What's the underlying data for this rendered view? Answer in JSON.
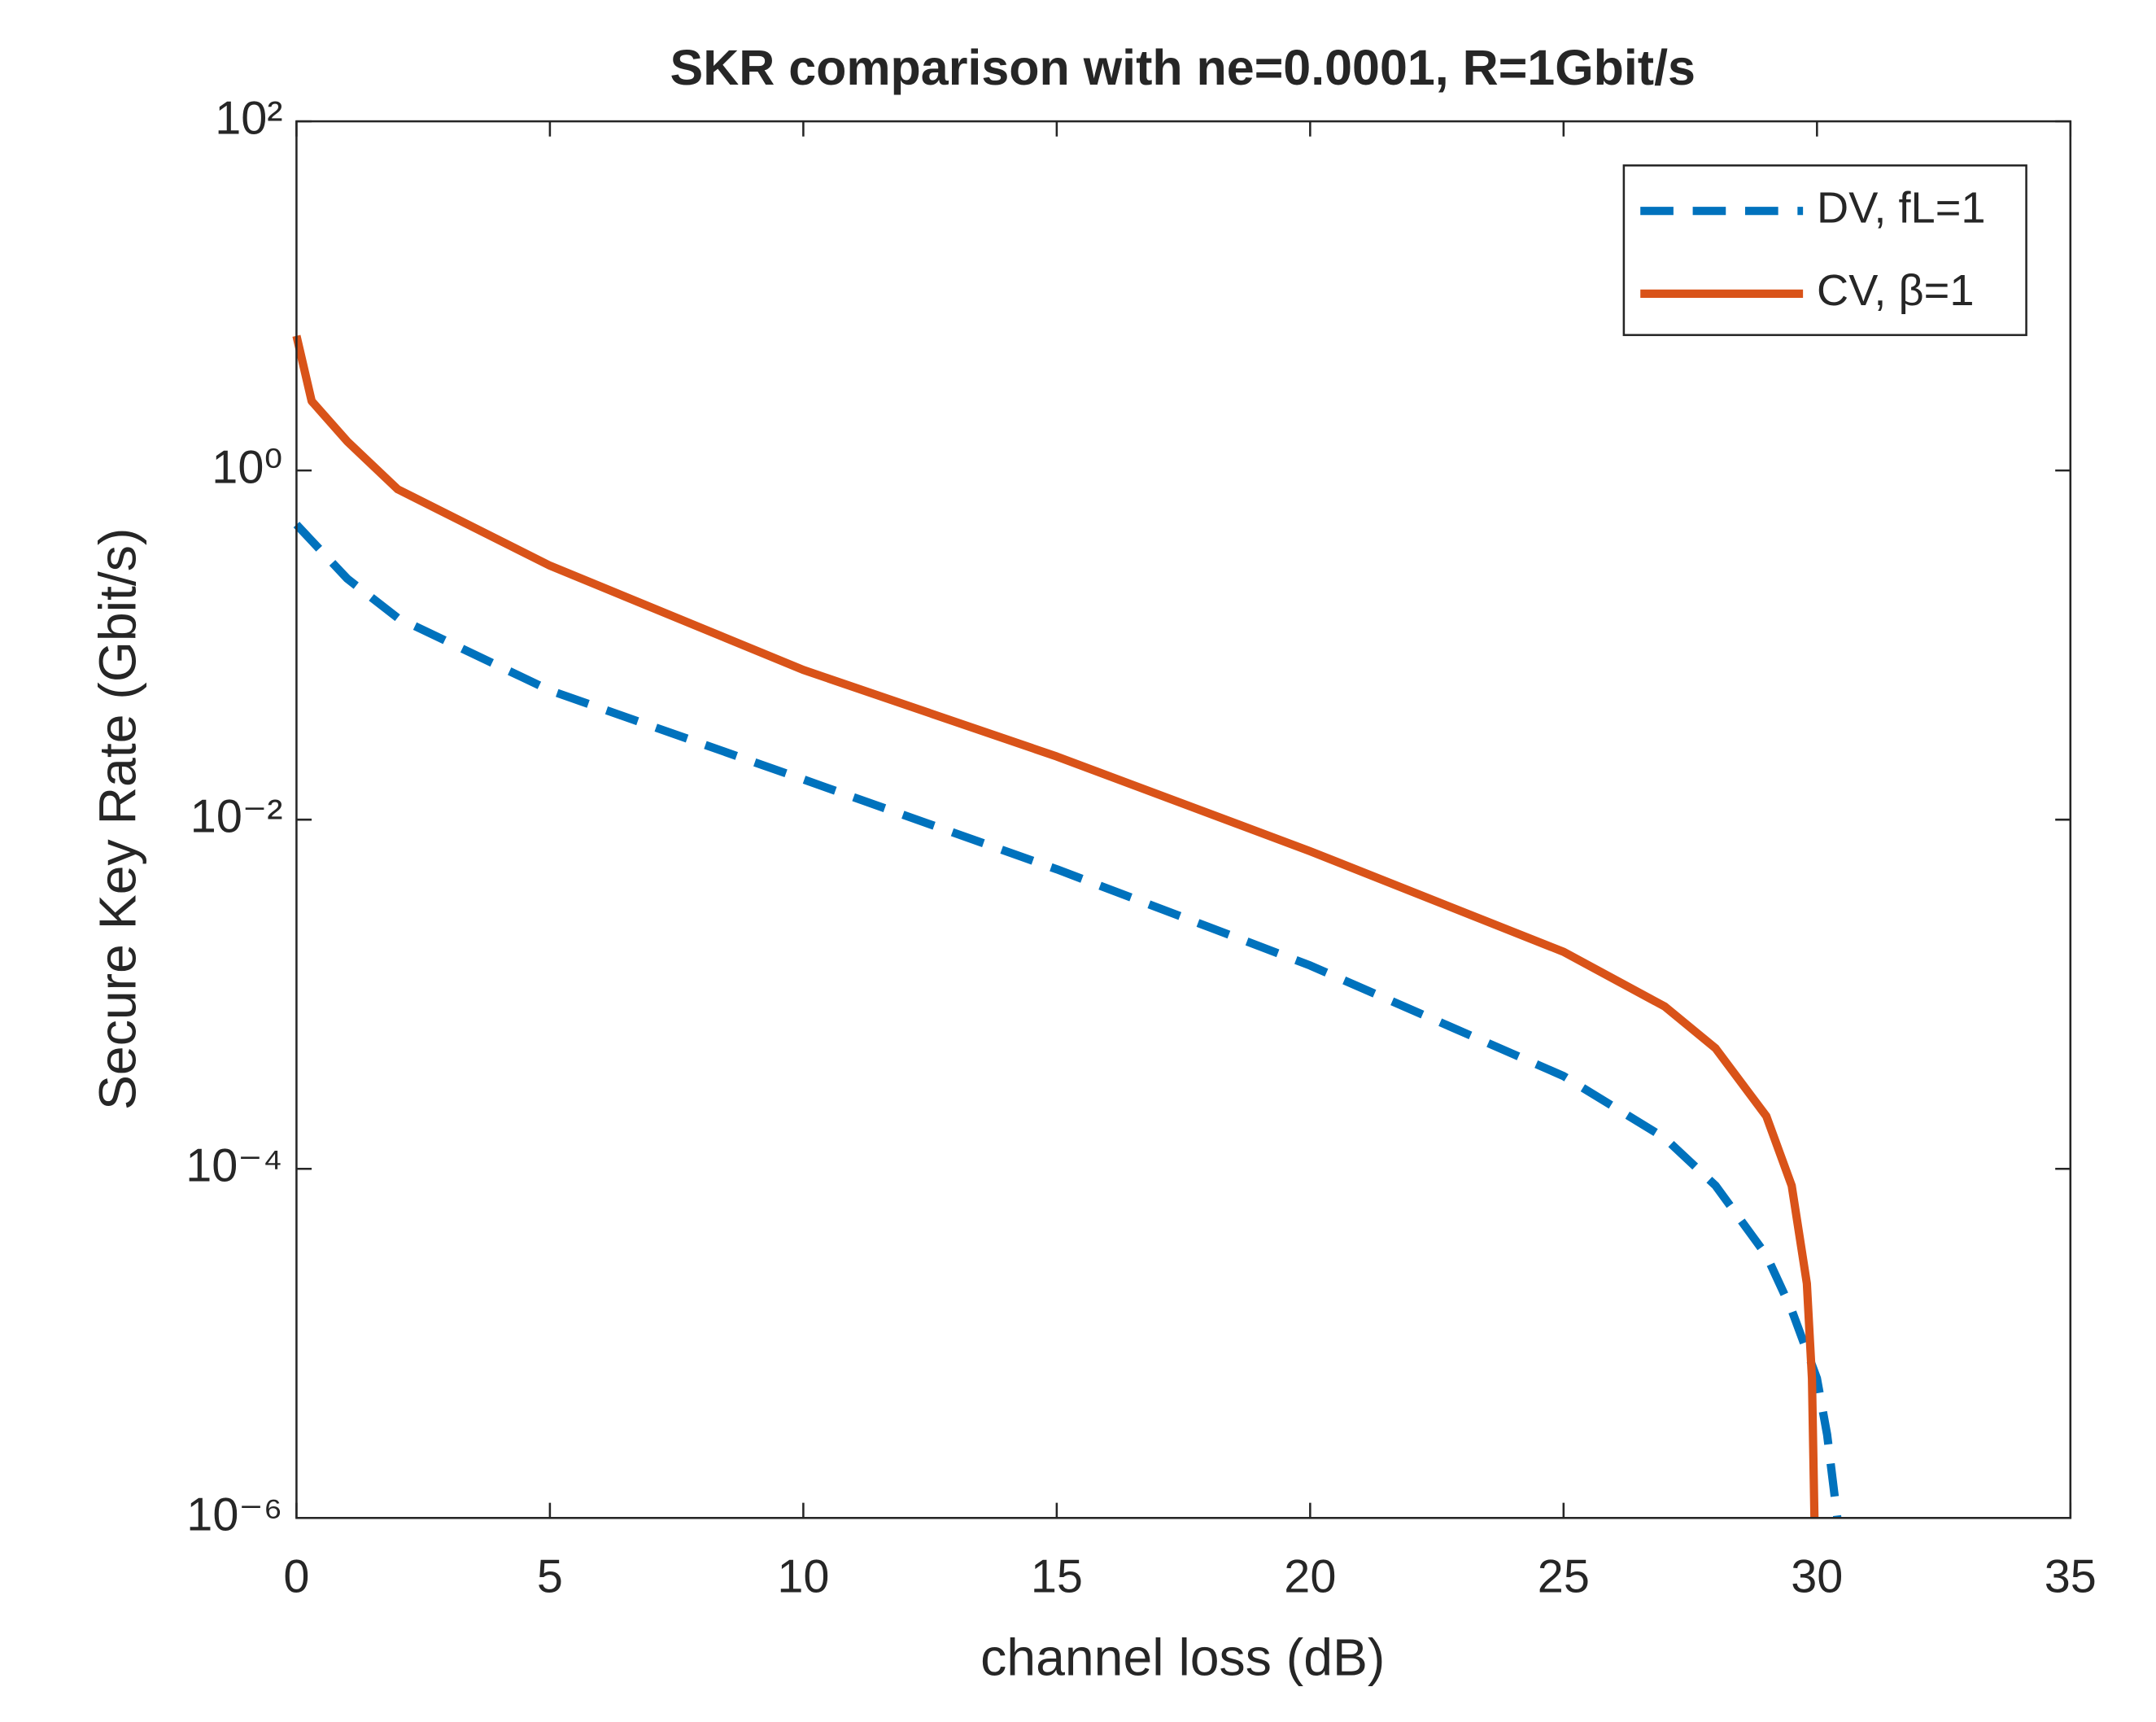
{
  "chart_data": {
    "type": "line",
    "title": "SKR comparison with ne=0.0001, R=1Gbit/s",
    "xlabel": "channel loss (dB)",
    "ylabel": "Secure Key Rate (Gbit/s)",
    "xlim": [
      0,
      35
    ],
    "xticks": [
      0,
      5,
      10,
      15,
      20,
      25,
      30,
      35
    ],
    "ylim": [
      1e-06,
      100
    ],
    "yscale": "log",
    "yticks": [
      {
        "value": 1e-06,
        "label": "10⁻⁶"
      },
      {
        "value": 0.0001,
        "label": "10⁻⁴"
      },
      {
        "value": 0.01,
        "label": "10⁻²"
      },
      {
        "value": 1,
        "label": "10⁰"
      },
      {
        "value": 100,
        "label": "10²"
      }
    ],
    "legend": "upper right",
    "series": [
      {
        "name": "DV, fL=1",
        "color": "#0072bd",
        "linestyle": "dashed",
        "x": [
          0,
          1,
          2,
          5,
          10,
          15,
          20,
          25,
          27,
          28,
          29,
          29.5,
          30,
          30.2,
          30.4
        ],
        "values": [
          0.49,
          0.24,
          0.143,
          0.055,
          0.017,
          0.0052,
          0.00146,
          0.00034,
          0.00015,
          8e-05,
          3.2e-05,
          1.55e-05,
          6.3e-06,
          3e-06,
          1e-06
        ]
      },
      {
        "name": "CV, β=1",
        "color": "#d95319",
        "linestyle": "solid",
        "x": [
          0,
          0.3,
          1,
          2,
          5,
          10,
          15,
          20,
          25,
          27,
          28,
          29,
          29.5,
          29.8,
          29.9,
          29.95
        ],
        "values": [
          5.9,
          2.5,
          1.47,
          0.78,
          0.285,
          0.072,
          0.023,
          0.0066,
          0.00175,
          0.00085,
          0.00049,
          0.0002,
          8e-05,
          2.2e-05,
          6.3e-06,
          1e-06
        ]
      }
    ]
  }
}
